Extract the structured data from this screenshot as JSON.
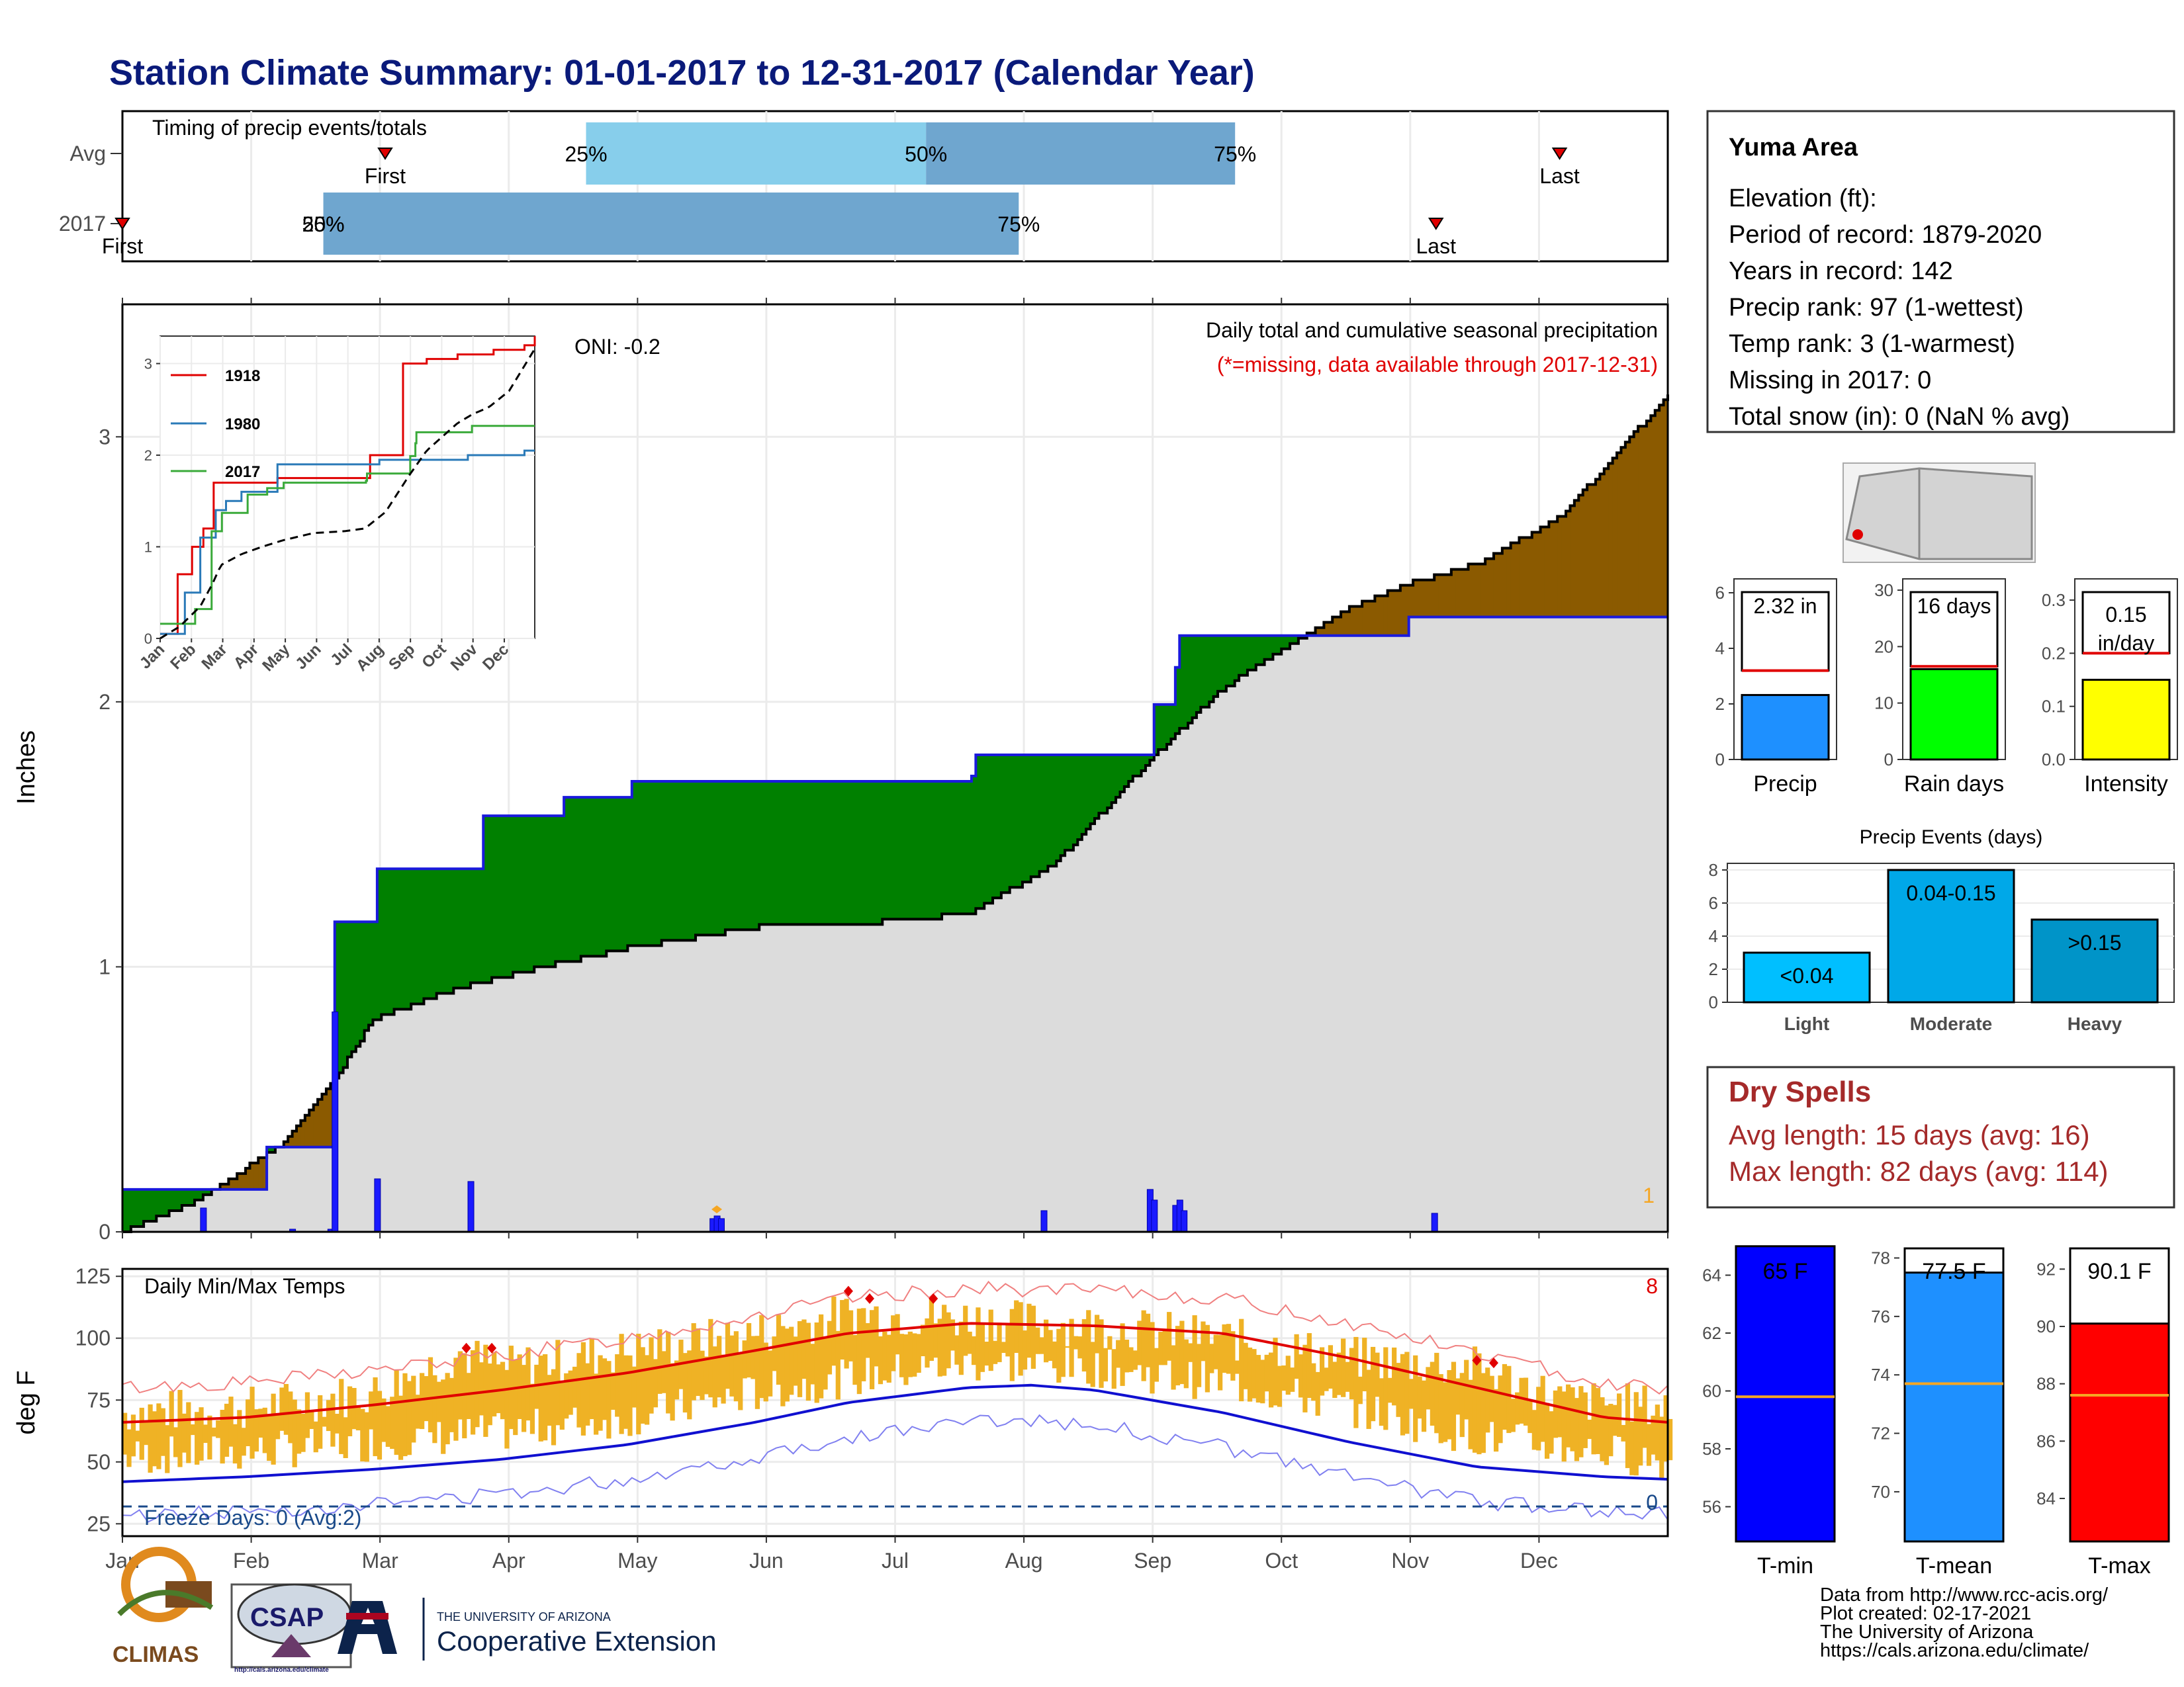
{
  "title": "Station Climate Summary: 01-01-2017 to 12-31-2017 (Calendar Year)",
  "colors": {
    "title": "#0a1a7a",
    "blue_line": "#1a1adc",
    "green": "#008000",
    "brown": "#8b5a00",
    "grey": "#dcdcdc",
    "temp_bar": "#efb225",
    "red": "#e00000",
    "drybrown": "#a52a2a"
  },
  "timing": {
    "label": "Timing of precip events/totals",
    "rows": [
      {
        "name": "Avg",
        "first_label": "First",
        "last_label": "Last",
        "p25": "25%",
        "p50": "50%",
        "p75": "75%",
        "first": 0.17,
        "last": 0.93,
        "q25": 0.3,
        "q50": 0.52,
        "q75": 0.72
      },
      {
        "name": "2017",
        "first_label": "First",
        "last_label": "Last",
        "p25": "25%",
        "p50": "50%",
        "p75": "75%",
        "first": 0.0,
        "last": 0.85,
        "q25": 0.13,
        "q50": 0.13,
        "q75": 0.58
      }
    ]
  },
  "precip": {
    "ylabel": "Inches",
    "header": "Daily total and cumulative seasonal precipitation",
    "note": "(*=missing, data available through 2017-12-31)",
    "oni": "ONI: -0.2",
    "corner_count": "1",
    "yticks": [
      "0",
      "1",
      "2",
      "3"
    ]
  },
  "months": [
    "Jan",
    "Feb",
    "Mar",
    "Apr",
    "May",
    "Jun",
    "Jul",
    "Aug",
    "Sep",
    "Oct",
    "Nov",
    "Dec"
  ],
  "inset": {
    "legend": [
      "1918",
      "1980",
      "2017"
    ],
    "yticks": [
      "0",
      "1",
      "2",
      "3"
    ],
    "xticks": [
      "Jan",
      "Feb",
      "Mar",
      "Apr",
      "May",
      "Jun",
      "Jul",
      "Aug",
      "Sep",
      "Oct",
      "Nov",
      "Dec"
    ]
  },
  "temps": {
    "title": "Daily Min/Max Temps",
    "ylabel": "deg F",
    "corner_count": "8",
    "freeze_label": "Freeze Days: 0 (Avg:2)",
    "freeze_count": "0",
    "yticks": [
      "25",
      "50",
      "75",
      "100",
      "125"
    ]
  },
  "station": {
    "name": "Yuma Area",
    "lines": [
      "Elevation (ft):",
      "Period of record: 1879-2020",
      "Years in record: 142",
      "Precip rank: 97 (1-wettest)",
      "Temp rank: 3 (1-warmest)",
      "Missing in 2017: 0",
      "Total snow (in): 0 (NaN % avg)"
    ]
  },
  "summary_bars": [
    {
      "label": "Precip",
      "value_text": "2.32 in",
      "yticks": [
        "0",
        "2",
        "4",
        "6"
      ]
    },
    {
      "label": "Rain days",
      "value_text": "16 days",
      "yticks": [
        "0",
        "10",
        "20",
        "30"
      ]
    },
    {
      "label": "Intensity",
      "value_text": "0.15 in/day",
      "value_line1": "0.15",
      "value_line2": "in/day",
      "yticks": [
        "0.0",
        "0.1",
        "0.2",
        "0.3"
      ]
    }
  ],
  "events": {
    "title": "Precip Events (days)",
    "yticks": [
      "0",
      "2",
      "4",
      "6",
      "8"
    ],
    "bars": [
      {
        "category": "Light",
        "range": "<0.04",
        "value": 3
      },
      {
        "category": "Moderate",
        "range": "0.04-0.15",
        "value": 8
      },
      {
        "category": "Heavy",
        "range": ">0.15",
        "value": 5
      }
    ]
  },
  "dry": {
    "title": "Dry Spells",
    "avg": "Avg length: 15 days (avg: 16)",
    "max": "Max length: 82 days (avg: 114)"
  },
  "temp_bars": [
    {
      "label": "T-min",
      "value_text": "65 F",
      "yticks": [
        "56",
        "58",
        "60",
        "62",
        "64"
      ]
    },
    {
      "label": "T-mean",
      "value_text": "77.5 F",
      "yticks": [
        "70",
        "72",
        "74",
        "76",
        "78"
      ]
    },
    {
      "label": "T-max",
      "value_text": "90.1 F",
      "yticks": [
        "84",
        "86",
        "88",
        "90",
        "92"
      ]
    }
  ],
  "logos": {
    "climas": "CLIMAS",
    "csap": "CSAP",
    "csap_url": "http://cals.arizona.edu/climate",
    "ua_small": "THE UNIVERSITY OF ARIZONA",
    "ua_big": "Cooperative Extension"
  },
  "footer": [
    "Data from http://www.rcc-acis.org/",
    "Plot created: 02-17-2021",
    "The University of Arizona",
    "https://cals.arizona.edu/climate/"
  ],
  "chart_data": [
    {
      "type": "area",
      "title": "Daily total and cumulative seasonal precipitation",
      "ylabel": "Inches",
      "ylim": [
        0,
        3.5
      ],
      "x_unit": "day of year",
      "series": [
        {
          "name": "2017",
          "x": [
            1,
            20,
            35,
            50,
            51,
            61,
            86,
            104,
            105,
            121,
            135,
            201,
            202,
            243,
            244,
            249,
            250,
            274,
            304,
            365
          ],
          "y": [
            0.16,
            0.16,
            0.32,
            0.32,
            1.17,
            1.37,
            1.57,
            1.57,
            1.64,
            1.7,
            1.7,
            1.72,
            1.8,
            1.8,
            1.99,
            2.13,
            2.25,
            2.25,
            2.32,
            2.32
          ]
        }
      ],
      "daily_2017": {
        "x": [
          20,
          41,
          50,
          51,
          61,
          83,
          140,
          141,
          142,
          218,
          243,
          244,
          249,
          250,
          251,
          310
        ],
        "y": [
          0.09,
          0.01,
          0.01,
          0.83,
          0.2,
          0.19,
          0.05,
          0.06,
          0.05,
          0.08,
          0.16,
          0.12,
          0.1,
          0.12,
          0.08,
          0.07
        ]
      },
      "average_cumulative": {
        "x": [
          1,
          20,
          40,
          52,
          60,
          80,
          100,
          120,
          150,
          180,
          200,
          220,
          243,
          260,
          275,
          290,
          305,
          320,
          340,
          365
        ],
        "y": [
          0.0,
          0.13,
          0.35,
          0.6,
          0.8,
          0.92,
          1.0,
          1.07,
          1.15,
          1.17,
          1.2,
          1.38,
          1.78,
          2.05,
          2.2,
          2.35,
          2.45,
          2.52,
          2.7,
          3.16
        ]
      }
    },
    {
      "type": "line",
      "title": "",
      "ylim": [
        0,
        3.3
      ],
      "series": [
        {
          "name": "1918",
          "x": [
            1,
            18,
            32,
            43,
            53,
            68,
            115,
            170,
            205,
            210,
            237,
            260,
            290,
            325,
            355,
            365
          ],
          "y": [
            0.05,
            0.7,
            1.0,
            1.2,
            1.7,
            1.7,
            1.75,
            1.75,
            2.0,
            2.0,
            3.0,
            3.05,
            3.1,
            3.15,
            3.2,
            3.3
          ]
        },
        {
          "name": "1980",
          "x": [
            1,
            25,
            40,
            55,
            65,
            80,
            115,
            172,
            214,
            260,
            300,
            340,
            355,
            365
          ],
          "y": [
            0.05,
            0.5,
            1.1,
            1.4,
            1.5,
            1.6,
            1.9,
            1.9,
            1.95,
            1.95,
            2.0,
            2.0,
            2.05,
            2.05
          ]
        },
        {
          "name": "2017",
          "x": [
            1,
            20,
            35,
            50,
            51,
            61,
            86,
            104,
            105,
            121,
            135,
            201,
            202,
            243,
            244,
            249,
            250,
            274,
            304,
            365
          ],
          "y": [
            0.16,
            0.16,
            0.32,
            0.32,
            1.17,
            1.37,
            1.57,
            1.57,
            1.64,
            1.7,
            1.7,
            1.72,
            1.8,
            1.8,
            1.99,
            2.13,
            2.25,
            2.25,
            2.32,
            2.32
          ]
        },
        {
          "name": "avg",
          "x": [
            1,
            20,
            40,
            52,
            60,
            80,
            100,
            120,
            150,
            180,
            200,
            220,
            243,
            260,
            275,
            290,
            305,
            320,
            340,
            365
          ],
          "y": [
            0.0,
            0.13,
            0.35,
            0.6,
            0.8,
            0.92,
            1.0,
            1.07,
            1.15,
            1.17,
            1.2,
            1.38,
            1.78,
            2.05,
            2.2,
            2.35,
            2.45,
            2.52,
            2.7,
            3.16
          ]
        }
      ]
    },
    {
      "type": "line",
      "title": "Daily Min/Max Temps",
      "ylabel": "deg F",
      "ylim": [
        20,
        128
      ],
      "series": [
        {
          "name": "avg_max",
          "x": [
            1,
            30,
            60,
            90,
            120,
            150,
            172,
            200,
            230,
            260,
            290,
            320,
            350,
            365
          ],
          "y": [
            66,
            68,
            73,
            79,
            86,
            95,
            102,
            106,
            105,
            102,
            92,
            80,
            68,
            66
          ]
        },
        {
          "name": "avg_min",
          "x": [
            1,
            30,
            60,
            90,
            120,
            150,
            172,
            200,
            215,
            230,
            260,
            290,
            320,
            350,
            365
          ],
          "y": [
            42,
            44,
            47,
            51,
            57,
            66,
            74,
            80,
            81,
            79,
            70,
            58,
            48,
            44,
            43
          ]
        },
        {
          "name": "2017_max",
          "x": [
            1,
            30,
            60,
            80,
            90,
            120,
            150,
            172,
            200,
            230,
            260,
            290,
            320,
            340,
            365
          ],
          "y": [
            70,
            72,
            78,
            94,
            88,
            95,
            102,
            110,
            108,
            105,
            100,
            92,
            88,
            75,
            72
          ]
        },
        {
          "name": "2017_min",
          "x": [
            1,
            30,
            60,
            90,
            120,
            150,
            172,
            200,
            230,
            260,
            290,
            320,
            350,
            365
          ],
          "y": [
            44,
            46,
            50,
            54,
            60,
            70,
            76,
            82,
            80,
            74,
            64,
            52,
            46,
            42
          ]
        }
      ]
    },
    {
      "type": "bar",
      "categories": [
        "Precip"
      ],
      "values": [
        2.32
      ],
      "ylim": [
        0,
        6.5
      ],
      "avg": 3.2
    },
    {
      "type": "bar",
      "categories": [
        "Rain days"
      ],
      "values": [
        16
      ],
      "ylim": [
        0,
        32
      ],
      "avg": 16.5
    },
    {
      "type": "bar",
      "categories": [
        "Intensity"
      ],
      "values": [
        0.15
      ],
      "ylim": [
        0,
        0.34
      ],
      "avg": 0.2
    },
    {
      "type": "bar",
      "title": "Precip Events (days)",
      "categories": [
        "Light",
        "Moderate",
        "Heavy"
      ],
      "values": [
        3,
        8,
        5
      ],
      "ylim": [
        0,
        8.4
      ]
    },
    {
      "type": "bar",
      "categories": [
        "T-min"
      ],
      "values": [
        65
      ],
      "ylim": [
        54.8,
        65.2
      ],
      "avg": 59.8
    },
    {
      "type": "bar",
      "categories": [
        "T-mean"
      ],
      "values": [
        77.5
      ],
      "ylim": [
        68.3,
        78.6
      ],
      "avg": 73.7
    },
    {
      "type": "bar",
      "categories": [
        "T-max"
      ],
      "values": [
        90.1
      ],
      "ylim": [
        82.5,
        93.0
      ],
      "avg": 87.6
    }
  ]
}
